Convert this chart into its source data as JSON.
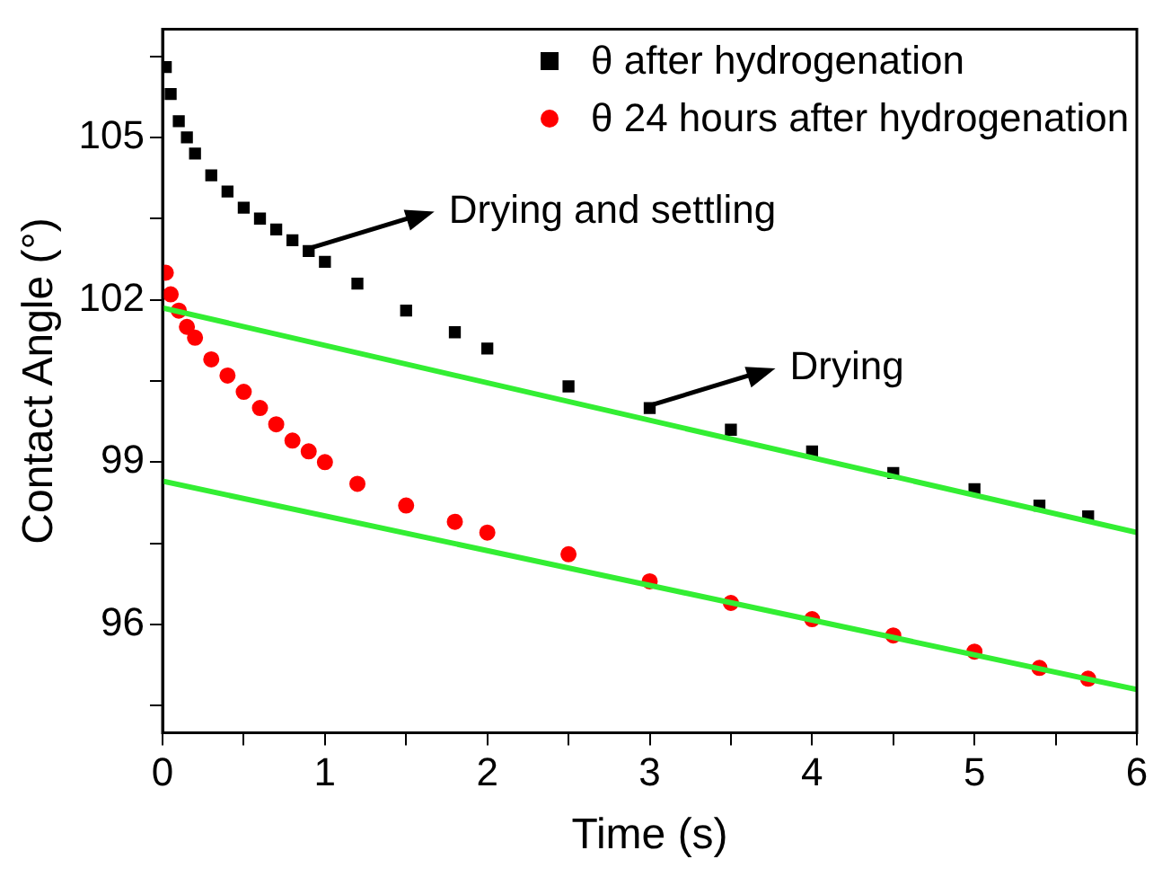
{
  "chart_data": {
    "type": "scatter",
    "xlabel": "Time (s)",
    "ylabel": "Contact Angle (°)",
    "xlim": [
      0,
      6
    ],
    "ylim": [
      94,
      107
    ],
    "xticks": [
      0,
      {
        "value": 0.5,
        "label": null
      },
      1,
      {
        "value": 1.5,
        "label": null
      },
      2,
      {
        "value": 2.5,
        "label": null
      },
      3,
      {
        "value": 3.5,
        "label": null
      },
      4,
      {
        "value": 4.5,
        "label": null
      },
      5,
      {
        "value": 5.5,
        "label": null
      },
      6
    ],
    "yticks": [
      {
        "value": 94.5,
        "label": null
      },
      96,
      {
        "value": 97.5,
        "label": null
      },
      99,
      {
        "value": 100.5,
        "label": null
      },
      102,
      {
        "value": 103.5,
        "label": null
      },
      105,
      {
        "value": 106.5,
        "label": null
      }
    ],
    "grid": false,
    "legend": "top right",
    "series": [
      {
        "name": "θ after hydrogenation",
        "color": "#000000",
        "marker": "square",
        "x": [
          0.02,
          0.05,
          0.1,
          0.15,
          0.2,
          0.3,
          0.4,
          0.5,
          0.6,
          0.7,
          0.8,
          0.9,
          1.0,
          1.2,
          1.5,
          1.8,
          2.0,
          2.5,
          3.0,
          3.5,
          4.0,
          4.5,
          5.0,
          5.4,
          5.7
        ],
        "values": [
          106.3,
          105.8,
          105.3,
          105.0,
          104.7,
          104.3,
          104.0,
          103.7,
          103.5,
          103.3,
          103.1,
          102.9,
          102.7,
          102.3,
          101.8,
          101.4,
          101.1,
          100.4,
          100.0,
          99.6,
          99.2,
          98.8,
          98.5,
          98.2,
          98.0
        ]
      },
      {
        "name": "θ 24 hours after hydrogenation",
        "color": "#ff0000",
        "marker": "circle",
        "x": [
          0.02,
          0.05,
          0.1,
          0.15,
          0.2,
          0.3,
          0.4,
          0.5,
          0.6,
          0.7,
          0.8,
          0.9,
          1.0,
          1.2,
          1.5,
          1.8,
          2.0,
          2.5,
          3.0,
          3.5,
          4.0,
          4.5,
          5.0,
          5.4,
          5.7
        ],
        "values": [
          102.5,
          102.1,
          101.8,
          101.5,
          101.3,
          100.9,
          100.6,
          100.3,
          100.0,
          99.7,
          99.4,
          99.2,
          99.0,
          98.6,
          98.2,
          97.9,
          97.7,
          97.3,
          96.8,
          96.4,
          96.1,
          95.8,
          95.5,
          95.2,
          95.0
        ]
      },
      {
        "type": "line",
        "color": "#33ee33",
        "x": [
          0,
          6
        ],
        "values": [
          101.85,
          97.7
        ]
      },
      {
        "type": "line",
        "color": "#33ee33",
        "x": [
          0,
          6
        ],
        "values": [
          98.65,
          94.8
        ]
      }
    ],
    "annotations": [
      {
        "text": "Drying and settling",
        "x": 0.9,
        "y": 102.9
      },
      {
        "text": "Drying",
        "x": 3.0,
        "y": 100.0
      }
    ]
  }
}
